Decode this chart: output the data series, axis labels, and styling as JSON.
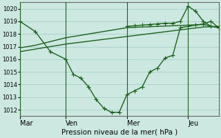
{
  "xlabel": "Pression niveau de la mer( hPa )",
  "bg_color": "#cce8e0",
  "line_color": "#1a5e1a",
  "ylim": [
    1011.5,
    1020.5
  ],
  "yticks": [
    1012,
    1013,
    1014,
    1015,
    1016,
    1017,
    1018,
    1019,
    1020
  ],
  "xtick_labels": [
    "Mar",
    "Ven",
    "Mer",
    "Jeu"
  ],
  "xtick_positions": [
    0,
    3,
    7,
    11
  ],
  "xlim": [
    0,
    13
  ],
  "vline_positions": [
    0,
    3,
    7,
    11
  ],
  "series1_x": [
    0,
    1,
    2,
    3,
    3.5,
    4,
    4.5,
    5,
    5.5,
    6,
    6.5,
    7,
    7.5,
    8,
    8.5,
    9,
    9.5,
    10,
    10.5,
    11,
    11.5,
    12,
    12.5,
    13
  ],
  "series1_y": [
    1019.0,
    1018.2,
    1016.6,
    1016.0,
    1014.8,
    1014.5,
    1013.8,
    1012.8,
    1012.1,
    1011.8,
    1011.8,
    1013.2,
    1013.5,
    1013.8,
    1015.0,
    1015.3,
    1016.1,
    1016.3,
    1018.5,
    1018.6,
    1018.7,
    1018.8,
    1019.0,
    1018.5
  ],
  "series2_x": [
    0,
    1,
    2,
    3,
    4,
    5,
    6,
    7,
    8,
    9,
    10,
    11,
    12,
    13
  ],
  "series2_y": [
    1016.6,
    1016.8,
    1017.0,
    1017.2,
    1017.35,
    1017.5,
    1017.65,
    1017.8,
    1017.95,
    1018.1,
    1018.25,
    1018.4,
    1018.55,
    1018.6
  ],
  "series3_x": [
    0,
    1,
    2,
    3,
    4,
    5,
    6,
    7,
    8,
    9,
    10,
    11,
    12,
    13
  ],
  "series3_y": [
    1016.9,
    1017.1,
    1017.4,
    1017.7,
    1017.9,
    1018.1,
    1018.3,
    1018.5,
    1018.55,
    1018.6,
    1018.65,
    1018.7,
    1018.75,
    1018.5
  ],
  "series4_x": [
    7,
    7.5,
    8,
    8.5,
    9,
    9.5,
    10,
    10.5,
    11,
    11.5,
    12,
    12.5,
    13
  ],
  "series4_y": [
    1018.6,
    1018.65,
    1018.7,
    1018.75,
    1018.8,
    1018.85,
    1018.85,
    1019.0,
    1020.2,
    1019.8,
    1019.0,
    1018.6,
    1018.5
  ],
  "grid_nx": 13,
  "grid_ny": 9
}
